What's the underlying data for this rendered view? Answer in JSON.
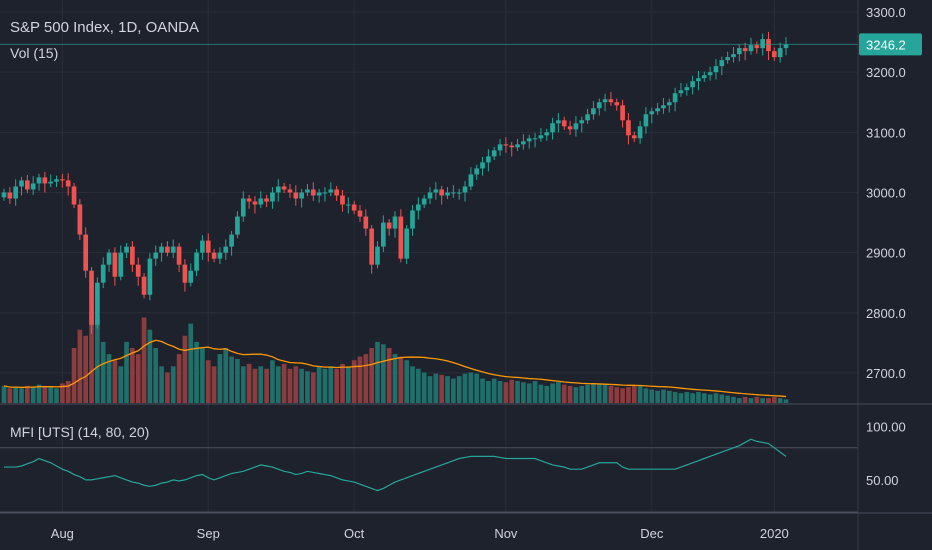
{
  "header": {
    "title": "S&P 500 Index, 1D, OANDA",
    "volume_label": "Vol (15)",
    "mfi_label": "MFI [UTS] (14, 80, 20)"
  },
  "colors": {
    "background": "#1e222d",
    "up": "#26a69a",
    "down": "#ef5350",
    "up_volume": "#1f6f6a",
    "down_volume": "#8a3c3f",
    "volume_ma": "#ff9800",
    "mfi_line": "#26a69a",
    "grid": "#2a2e39",
    "price_line": "#26a69a"
  },
  "chart_data": [
    {
      "type": "candlestick",
      "title": "S&P 500 Index, 1D, OANDA",
      "x_ticks": [
        "Aug",
        "Sep",
        "Oct",
        "Nov",
        "Dec",
        "2020"
      ],
      "y_ticks": [
        "3300.0",
        "3200.0",
        "3100.0",
        "3000.0",
        "2900.0",
        "2800.0",
        "2700.0"
      ],
      "ylim": [
        2650,
        3320
      ],
      "last_price": "3246.2",
      "close": [
        3000,
        2990,
        3010,
        3020,
        3005,
        3015,
        3025,
        3015,
        3018,
        3022,
        3020,
        3010,
        2980,
        2930,
        2870,
        2780,
        2850,
        2880,
        2900,
        2860,
        2900,
        2910,
        2880,
        2860,
        2830,
        2890,
        2900,
        2910,
        2900,
        2910,
        2880,
        2850,
        2870,
        2900,
        2920,
        2900,
        2890,
        2900,
        2910,
        2930,
        2960,
        2990,
        2985,
        2980,
        2990,
        2985,
        3000,
        3010,
        3005,
        3000,
        2990,
        3000,
        3005,
        2995,
        3000,
        3000,
        3005,
        2995,
        2980,
        2980,
        2970,
        2960,
        2940,
        2880,
        2910,
        2950,
        2940,
        2960,
        2890,
        2940,
        2970,
        2980,
        2990,
        3000,
        3005,
        2995,
        3000,
        3000,
        3000,
        3010,
        3030,
        3040,
        3050,
        3060,
        3070,
        3080,
        3078,
        3075,
        3080,
        3085,
        3090,
        3090,
        3095,
        3100,
        3115,
        3120,
        3110,
        3105,
        3115,
        3120,
        3130,
        3140,
        3150,
        3155,
        3150,
        3145,
        3120,
        3095,
        3090,
        3110,
        3130,
        3135,
        3140,
        3145,
        3150,
        3165,
        3170,
        3175,
        3185,
        3190,
        3195,
        3200,
        3210,
        3220,
        3225,
        3230,
        3240,
        3235,
        3245,
        3240,
        3255,
        3235,
        3225,
        3240,
        3246.2
      ]
    },
    {
      "type": "bar",
      "name": "Vol (15)",
      "values": [
        14,
        12,
        13,
        12,
        14,
        13,
        15,
        14,
        13,
        12,
        16,
        18,
        45,
        60,
        55,
        75,
        70,
        50,
        40,
        35,
        30,
        50,
        45,
        40,
        70,
        60,
        45,
        30,
        25,
        30,
        40,
        55,
        65,
        50,
        45,
        35,
        30,
        40,
        45,
        38,
        36,
        30,
        32,
        28,
        30,
        28,
        35,
        30,
        32,
        28,
        30,
        28,
        26,
        25,
        30,
        28,
        30,
        28,
        32,
        30,
        35,
        38,
        40,
        45,
        50,
        48,
        45,
        40,
        38,
        35,
        30,
        28,
        25,
        22,
        24,
        23,
        22,
        20,
        22,
        24,
        25,
        24,
        20,
        18,
        20,
        18,
        17,
        19,
        18,
        17,
        16,
        18,
        15,
        14,
        16,
        17,
        15,
        14,
        13,
        14,
        15,
        16,
        16,
        15,
        14,
        13,
        12,
        13,
        14,
        14,
        12,
        11,
        10,
        11,
        10,
        9,
        8,
        9,
        8,
        9,
        8,
        7,
        8,
        7,
        6,
        5,
        4,
        5,
        4,
        5,
        4,
        4,
        5,
        4,
        3
      ]
    },
    {
      "type": "line",
      "name": "MFI [UTS] (14, 80, 20)",
      "ylim": [
        20,
        120
      ],
      "y_ticks": [
        "100.00",
        "50.00"
      ],
      "values": [
        62,
        62,
        62,
        63,
        65,
        67,
        70,
        68,
        66,
        63,
        60,
        58,
        55,
        53,
        50,
        50,
        51,
        52,
        53,
        54,
        52,
        50,
        48,
        47,
        45,
        44,
        45,
        47,
        48,
        50,
        49,
        50,
        52,
        54,
        55,
        52,
        50,
        52,
        54,
        56,
        57,
        58,
        60,
        62,
        64,
        63,
        62,
        60,
        58,
        57,
        55,
        56,
        58,
        57,
        56,
        55,
        54,
        52,
        50,
        49,
        48,
        46,
        44,
        42,
        40,
        42,
        45,
        48,
        50,
        52,
        54,
        56,
        58,
        60,
        62,
        64,
        66,
        68,
        70,
        71,
        72,
        72,
        72,
        72,
        72,
        71,
        70,
        70,
        70,
        70,
        70,
        70,
        68,
        66,
        64,
        63,
        62,
        60,
        60,
        60,
        62,
        64,
        66,
        66,
        66,
        66,
        62,
        60,
        60,
        60,
        60,
        60,
        60,
        60,
        60,
        60,
        62,
        64,
        66,
        68,
        70,
        72,
        74,
        76,
        78,
        80,
        82,
        85,
        88,
        86,
        85,
        84,
        80,
        76,
        72
      ]
    }
  ]
}
